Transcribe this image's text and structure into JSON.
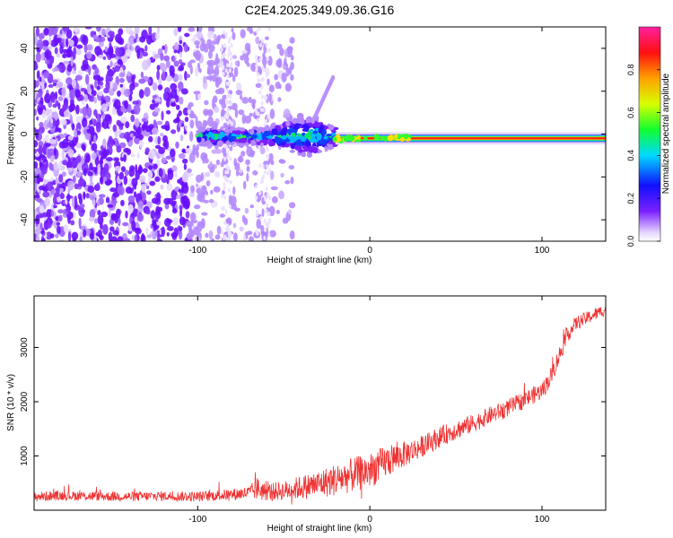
{
  "figure": {
    "title": "C2E4.2025.349.09.36.G16"
  },
  "chart_data": [
    {
      "type": "heatmap",
      "title": "C2E4.2025.349.09.36.G16",
      "xlabel": "Height of straight line (km)",
      "ylabel": "Frequency (Hz)",
      "xlim": [
        -195,
        137
      ],
      "ylim": [
        -50,
        50
      ],
      "xticks": [
        -100,
        0,
        100
      ],
      "yticks": [
        -40,
        -20,
        0,
        20,
        40
      ],
      "colorbar": {
        "label": "Normalized spectral amplitude",
        "range": [
          0,
          1
        ],
        "ticks": [
          "0.0",
          "0.2",
          "0.4",
          "0.6",
          "0.8"
        ]
      },
      "description_series": [
        {
          "name": "strong carrier band",
          "x_range": [
            -20,
            137
          ],
          "frequency_hz": -2,
          "amplitude": 0.95
        },
        {
          "name": "fragmented signal region",
          "x_range": [
            -100,
            -20
          ],
          "frequency_hz": -1,
          "amplitude": 0.45
        },
        {
          "name": "noise region",
          "x_range": [
            -195,
            -45
          ],
          "frequency_range": [
            -50,
            50
          ],
          "amplitude": 0.1
        }
      ]
    },
    {
      "type": "line",
      "xlabel": "Height of straight line (km)",
      "ylabel": "SNR (10 * v/v)",
      "xlim": [
        -195,
        137
      ],
      "ylim": [
        0,
        3950
      ],
      "xticks": [
        -100,
        0,
        100
      ],
      "yticks": [
        1000,
        2000,
        3000
      ],
      "color": "#ee3333",
      "series": [
        {
          "name": "SNR",
          "x": [
            -195,
            -180,
            -160,
            -140,
            -120,
            -100,
            -90,
            -80,
            -70,
            -65,
            -60,
            -55,
            -50,
            -40,
            -30,
            -20,
            -10,
            0,
            10,
            20,
            30,
            40,
            50,
            60,
            70,
            80,
            90,
            100,
            105,
            110,
            115,
            120,
            130,
            137
          ],
          "y": [
            250,
            270,
            260,
            250,
            260,
            250,
            270,
            290,
            320,
            400,
            330,
            350,
            360,
            420,
            480,
            560,
            650,
            730,
            900,
            1030,
            1170,
            1340,
            1480,
            1600,
            1750,
            1880,
            2040,
            2200,
            2450,
            2850,
            3250,
            3450,
            3600,
            3700
          ],
          "noise_amplitude": [
            90,
            90,
            90,
            90,
            90,
            95,
            100,
            110,
            130,
            220,
            160,
            170,
            180,
            220,
            260,
            300,
            320,
            330,
            300,
            240,
            200,
            190,
            180,
            170,
            160,
            160,
            160,
            160,
            170,
            170,
            150,
            130,
            120,
            110
          ]
        }
      ]
    }
  ]
}
